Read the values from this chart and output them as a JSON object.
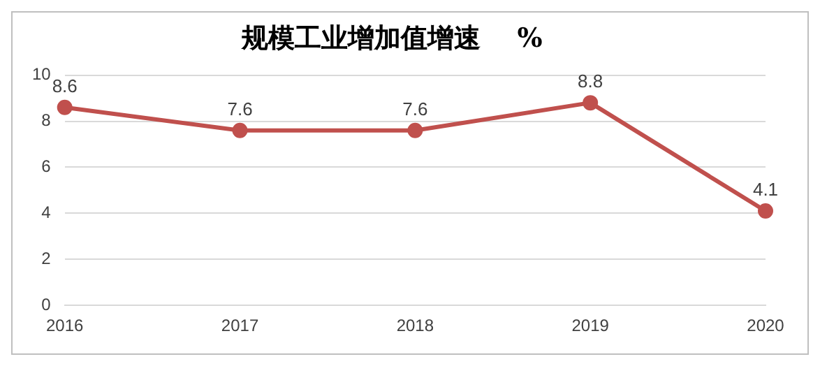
{
  "chart_data": {
    "type": "line",
    "title": "规模工业增加值增速    %",
    "categories": [
      "2016",
      "2017",
      "2018",
      "2019",
      "2020"
    ],
    "series": [
      {
        "color": "#c0504d",
        "values": [
          8.6,
          7.6,
          7.6,
          8.8,
          4.1
        ]
      }
    ],
    "ylim": [
      0,
      10
    ],
    "yticks": [
      0,
      2,
      4,
      6,
      8,
      10
    ],
    "grid": "y",
    "marker": "circle",
    "line_style": "solid",
    "data_labels": true,
    "legend": false
  }
}
